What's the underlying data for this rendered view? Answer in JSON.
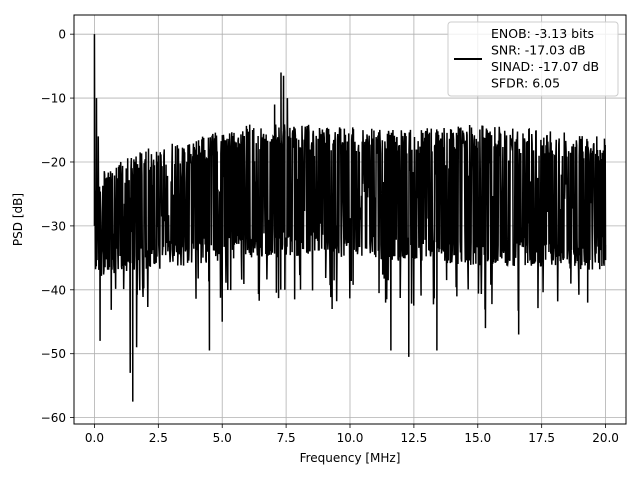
{
  "chart_data": {
    "type": "line",
    "title": "",
    "xlabel": "Frequency [MHz]",
    "ylabel": "PSD [dB]",
    "xlim": [
      -0.8,
      20.8
    ],
    "ylim": [
      -61,
      3
    ],
    "xticks": [
      0.0,
      2.5,
      5.0,
      7.5,
      10.0,
      12.5,
      15.0,
      17.5,
      20.0
    ],
    "xtick_labels": [
      "0.0",
      "2.5",
      "5.0",
      "7.5",
      "10.0",
      "12.5",
      "15.0",
      "17.5",
      "20.0"
    ],
    "yticks": [
      0,
      -10,
      -20,
      -30,
      -40,
      -50,
      -60
    ],
    "ytick_labels": [
      "0",
      "−10",
      "−20",
      "−30",
      "−40",
      "−50",
      "−60"
    ],
    "grid": true,
    "legend_position": "top-right",
    "legend_lines": [
      "ENOB: -3.13 bits",
      "SNR: -17.03 dB",
      "SINAD: -17.07 dB",
      "SFDR: 6.05"
    ],
    "series_color": "#000000",
    "noise_model": {
      "x_start": 0.0,
      "x_end": 20.0,
      "num_points": 1400,
      "envelope_upper": [
        [
          0.0,
          -22
        ],
        [
          2.0,
          -18
        ],
        [
          6.0,
          -14
        ],
        [
          8.0,
          -14
        ],
        [
          12.0,
          -15
        ],
        [
          15.0,
          -14
        ],
        [
          20.0,
          -16
        ]
      ],
      "envelope_lower": [
        [
          0.0,
          -38
        ],
        [
          2.0,
          -37
        ],
        [
          6.0,
          -35
        ],
        [
          10.0,
          -35
        ],
        [
          14.0,
          -36
        ],
        [
          20.0,
          -37
        ]
      ]
    },
    "features": [
      {
        "x": 0.0,
        "y": 0.0
      },
      {
        "x": 0.08,
        "y": -10.0
      },
      {
        "x": 0.15,
        "y": -16.0
      },
      {
        "x": 0.22,
        "y": -48.0
      },
      {
        "x": 1.4,
        "y": -53.0
      },
      {
        "x": 1.5,
        "y": -57.5
      },
      {
        "x": 1.65,
        "y": -49.0
      },
      {
        "x": 4.5,
        "y": -49.5
      },
      {
        "x": 5.0,
        "y": -45.0
      },
      {
        "x": 7.05,
        "y": -11.0
      },
      {
        "x": 7.3,
        "y": -6.0
      },
      {
        "x": 7.4,
        "y": -6.5
      },
      {
        "x": 7.55,
        "y": -10.0
      },
      {
        "x": 7.45,
        "y": -40.0
      },
      {
        "x": 9.3,
        "y": -43.0
      },
      {
        "x": 11.6,
        "y": -49.5
      },
      {
        "x": 12.3,
        "y": -50.5
      },
      {
        "x": 13.4,
        "y": -49.5
      },
      {
        "x": 15.3,
        "y": -46.0
      },
      {
        "x": 16.6,
        "y": -47.0
      },
      {
        "x": 19.3,
        "y": -42.0
      },
      {
        "x": 20.0,
        "y": -33.0
      }
    ]
  }
}
